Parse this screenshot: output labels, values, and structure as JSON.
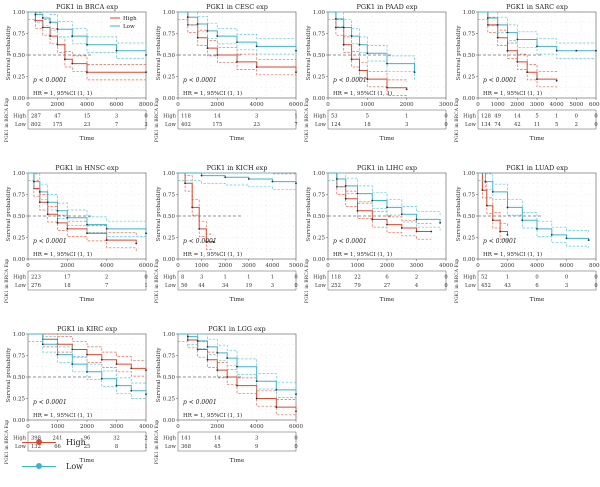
{
  "figure": {
    "colors": {
      "high": "#d9492e",
      "low": "#3fb4c8",
      "ci_high": "#e56b55",
      "ci_low": "#5fc8da",
      "km_dark": "#1e2f3c"
    },
    "legend": [
      {
        "label": "High",
        "series": "High"
      },
      {
        "label": "Low",
        "series": "Low"
      }
    ]
  },
  "chart_data": [
    {
      "type": "line",
      "title": "PGK1 in BRCA exp",
      "xlabel": "Time",
      "ylabel": "Survival probability",
      "xlim": [
        0,
        8000
      ],
      "ylim": [
        0,
        1
      ],
      "x_ticks": [
        "0",
        "2000",
        "4000",
        "6000",
        "8000"
      ],
      "y_ticks": [
        "0.00",
        "0.25",
        "0.50",
        "0.75",
        "1.00"
      ],
      "legend": [
        "High",
        "Low"
      ],
      "p_value": "p < 0.0001",
      "hr": "HR = 1, 95%CI (1, 1)",
      "risk_side_label": "PGK1 in BRCA Exp",
      "risk_rows": [
        {
          "name": "High",
          "counts": [
            "287",
            "47",
            "15",
            "3",
            "0"
          ]
        },
        {
          "name": "Low",
          "counts": [
            "802",
            "175",
            "23",
            "7",
            "3"
          ]
        }
      ],
      "series": [
        {
          "name": "High",
          "x": [
            0,
            500,
            1000,
            1500,
            2000,
            2500,
            3000,
            4000,
            8000
          ],
          "y": [
            1.0,
            0.9,
            0.82,
            0.72,
            0.62,
            0.45,
            0.4,
            0.3,
            0.3
          ]
        },
        {
          "name": "Low",
          "x": [
            0,
            500,
            1000,
            1500,
            2000,
            3000,
            4000,
            6000,
            8000
          ],
          "y": [
            1.0,
            0.97,
            0.93,
            0.88,
            0.8,
            0.72,
            0.62,
            0.55,
            0.5
          ]
        }
      ]
    },
    {
      "type": "line",
      "title": "PGK1 in CESC exp",
      "xlabel": "Time",
      "ylabel": "Survival probability",
      "xlim": [
        0,
        6000
      ],
      "ylim": [
        0,
        1
      ],
      "x_ticks": [
        "0",
        "2000",
        "4000",
        "6000"
      ],
      "y_ticks": [
        "0.00",
        "0.25",
        "0.50",
        "0.75",
        "1.00"
      ],
      "legend": [],
      "p_value": "p < 0.0001",
      "hr": "HR = 1, 95%CI (1, 1)",
      "risk_side_label": "PGK1 in BRCA Exp",
      "risk_rows": [
        {
          "name": "High",
          "counts": [
            "118",
            "14",
            "3",
            "1"
          ]
        },
        {
          "name": "Low",
          "counts": [
            "402",
            "175",
            "23",
            "7"
          ]
        }
      ],
      "series": [
        {
          "name": "High",
          "x": [
            0,
            500,
            1000,
            1500,
            2000,
            3000,
            4000,
            6000
          ],
          "y": [
            1.0,
            0.85,
            0.7,
            0.58,
            0.5,
            0.42,
            0.36,
            0.3
          ]
        },
        {
          "name": "Low",
          "x": [
            0,
            500,
            1000,
            1500,
            2000,
            3000,
            4000,
            6000
          ],
          "y": [
            1.0,
            0.94,
            0.86,
            0.78,
            0.72,
            0.65,
            0.6,
            0.55
          ]
        }
      ]
    },
    {
      "type": "line",
      "title": "PGK1 in PAAD exp",
      "xlabel": "Time",
      "ylabel": "Survival probability",
      "xlim": [
        0,
        3000
      ],
      "ylim": [
        0,
        1
      ],
      "x_ticks": [
        "0",
        "1000",
        "2000",
        "3000"
      ],
      "y_ticks": [
        "0.00",
        "0.25",
        "0.50",
        "0.75",
        "1.00"
      ],
      "legend": [],
      "p_value": "p < 0.0001",
      "hr": "HR = 1, 95%CI (1, 1)",
      "risk_side_label": "PGK1 in BRCA Exp",
      "risk_rows": [
        {
          "name": "High",
          "counts": [
            "53",
            "5",
            "1",
            "0"
          ]
        },
        {
          "name": "Low",
          "counts": [
            "124",
            "18",
            "3",
            "0"
          ]
        }
      ],
      "series": [
        {
          "name": "High",
          "x": [
            0,
            200,
            400,
            600,
            800,
            1000,
            1500,
            2000
          ],
          "y": [
            1.0,
            0.82,
            0.62,
            0.45,
            0.32,
            0.22,
            0.12,
            0.1
          ]
        },
        {
          "name": "Low",
          "x": [
            0,
            200,
            400,
            600,
            800,
            1000,
            1500,
            2200
          ],
          "y": [
            1.0,
            0.92,
            0.82,
            0.72,
            0.62,
            0.52,
            0.4,
            0.3
          ]
        }
      ]
    },
    {
      "type": "line",
      "title": "PGK1 in SARC exp",
      "xlabel": "Time",
      "ylabel": "Survival probability",
      "xlim": [
        0,
        6000
      ],
      "ylim": [
        0,
        1
      ],
      "x_ticks": [
        "0",
        "1000",
        "2000",
        "3000",
        "4000",
        "5000",
        "6000"
      ],
      "y_ticks": [
        "0.00",
        "0.25",
        "0.50",
        "0.75",
        "1.00"
      ],
      "legend": [],
      "p_value": "p < 0.0001",
      "hr": "HR = 1, 95%CI (1, 1)",
      "risk_side_label": "PGK1 in BRCA Exp",
      "risk_rows": [
        {
          "name": "High",
          "counts": [
            "128",
            "49",
            "14",
            "5",
            "1",
            "0",
            "0"
          ]
        },
        {
          "name": "Low",
          "counts": [
            "134",
            "74",
            "42",
            "11",
            "5",
            "2",
            "0"
          ]
        }
      ],
      "series": [
        {
          "name": "High",
          "x": [
            0,
            500,
            1000,
            1500,
            2000,
            2500,
            3000,
            4000
          ],
          "y": [
            1.0,
            0.85,
            0.7,
            0.55,
            0.42,
            0.3,
            0.22,
            0.2
          ]
        },
        {
          "name": "Low",
          "x": [
            0,
            500,
            1000,
            1500,
            2000,
            3000,
            4000,
            5000,
            6000
          ],
          "y": [
            1.0,
            0.93,
            0.85,
            0.76,
            0.68,
            0.6,
            0.55,
            0.55,
            0.55
          ]
        }
      ]
    },
    {
      "type": "line",
      "title": "PGK1 in HNSC exp",
      "xlabel": "Time",
      "ylabel": "Survival probability",
      "xlim": [
        0,
        6000
      ],
      "ylim": [
        0,
        1
      ],
      "x_ticks": [
        "0",
        "2000",
        "4000",
        "6000"
      ],
      "y_ticks": [
        "0.00",
        "0.25",
        "0.50",
        "0.75",
        "1.00"
      ],
      "legend": [],
      "p_value": "p < 0.0001",
      "hr": "HR = 1, 95%CI (1, 1)",
      "risk_side_label": "PGK1 in BRCA Exp",
      "risk_rows": [
        {
          "name": "High",
          "counts": [
            "223",
            "17",
            "2",
            "0"
          ]
        },
        {
          "name": "Low",
          "counts": [
            "276",
            "18",
            "7",
            "1"
          ]
        }
      ],
      "series": [
        {
          "name": "High",
          "x": [
            0,
            300,
            600,
            1000,
            1500,
            2000,
            3000,
            4000,
            5500
          ],
          "y": [
            1.0,
            0.82,
            0.66,
            0.52,
            0.42,
            0.35,
            0.3,
            0.22,
            0.18
          ]
        },
        {
          "name": "Low",
          "x": [
            0,
            300,
            600,
            1000,
            1500,
            2000,
            3000,
            4000,
            6000
          ],
          "y": [
            1.0,
            0.9,
            0.78,
            0.66,
            0.56,
            0.48,
            0.4,
            0.35,
            0.3
          ]
        }
      ]
    },
    {
      "type": "line",
      "title": "PGK1 in KICH exp",
      "xlabel": "Time",
      "ylabel": "Survival probability",
      "xlim": [
        0,
        5000
      ],
      "ylim": [
        0,
        1
      ],
      "x_ticks": [
        "0",
        "1000",
        "2000",
        "3000",
        "4000",
        "5000"
      ],
      "y_ticks": [
        "0.00",
        "0.25",
        "0.50",
        "0.75",
        "1.00"
      ],
      "legend": [],
      "p_value": "p < 0.0001",
      "hr": "HR = 1, 95%CI (1, 1)",
      "risk_side_label": "PGK1 in BRCA Exp",
      "risk_rows": [
        {
          "name": "High",
          "counts": [
            "8",
            "3",
            "1",
            "1",
            "1",
            "0"
          ]
        },
        {
          "name": "Low",
          "counts": [
            "56",
            "44",
            "34",
            "19",
            "3",
            "0"
          ]
        }
      ],
      "series": [
        {
          "name": "High",
          "x": [
            0,
            300,
            600,
            900,
            1200,
            1500
          ],
          "y": [
            1.0,
            0.88,
            0.6,
            0.35,
            0.2,
            0.2
          ]
        },
        {
          "name": "Low",
          "x": [
            0,
            1000,
            2000,
            3000,
            4000,
            5000
          ],
          "y": [
            1.0,
            0.97,
            0.95,
            0.93,
            0.9,
            0.88
          ]
        }
      ]
    },
    {
      "type": "line",
      "title": "PGK1 in LIHC exp",
      "xlabel": "Time",
      "ylabel": "Survival probability",
      "xlim": [
        0,
        4000
      ],
      "ylim": [
        0,
        1
      ],
      "x_ticks": [
        "0",
        "1000",
        "2000",
        "3000",
        "4000"
      ],
      "y_ticks": [
        "0.00",
        "0.25",
        "0.50",
        "0.75",
        "1.00"
      ],
      "legend": [],
      "p_value": "p < 0.0001",
      "hr": "HR = 1, 95%CI (1, 1)",
      "risk_side_label": "PGK1 in BRCA Exp",
      "risk_rows": [
        {
          "name": "High",
          "counts": [
            "118",
            "22",
            "6",
            "2",
            "0"
          ]
        },
        {
          "name": "Low",
          "counts": [
            "252",
            "79",
            "27",
            "4",
            "0"
          ]
        }
      ],
      "series": [
        {
          "name": "High",
          "x": [
            0,
            300,
            600,
            1000,
            1500,
            2000,
            2500,
            3000,
            3500
          ],
          "y": [
            1.0,
            0.84,
            0.7,
            0.56,
            0.46,
            0.4,
            0.36,
            0.32,
            0.32
          ]
        },
        {
          "name": "Low",
          "x": [
            0,
            300,
            600,
            1000,
            1500,
            2000,
            2500,
            3000,
            3800
          ],
          "y": [
            1.0,
            0.93,
            0.85,
            0.76,
            0.68,
            0.6,
            0.52,
            0.46,
            0.42
          ]
        }
      ]
    },
    {
      "type": "line",
      "title": "PGK1 in LUAD exp",
      "xlabel": "Time",
      "ylabel": "Survival probability",
      "xlim": [
        0,
        8000
      ],
      "ylim": [
        0,
        1
      ],
      "x_ticks": [
        "0",
        "2000",
        "4000",
        "6000",
        "8000"
      ],
      "y_ticks": [
        "0.00",
        "0.25",
        "0.50",
        "0.75",
        "1.00"
      ],
      "legend": [],
      "p_value": "p < 0.0001",
      "hr": "HR = 1, 95%CI (1, 1)",
      "risk_side_label": "PGK1 in BRCA Exp",
      "risk_rows": [
        {
          "name": "High",
          "counts": [
            "52",
            "1",
            "0",
            "0",
            "0"
          ]
        },
        {
          "name": "Low",
          "counts": [
            "452",
            "43",
            "6",
            "3",
            "0"
          ]
        }
      ],
      "series": [
        {
          "name": "High",
          "x": [
            0,
            300,
            600,
            1000,
            1500,
            2000
          ],
          "y": [
            1.0,
            0.8,
            0.62,
            0.45,
            0.32,
            0.28
          ]
        },
        {
          "name": "Low",
          "x": [
            0,
            500,
            1000,
            2000,
            3000,
            4000,
            5000,
            6000,
            7500
          ],
          "y": [
            1.0,
            0.9,
            0.78,
            0.6,
            0.45,
            0.35,
            0.28,
            0.24,
            0.22
          ]
        }
      ]
    },
    {
      "type": "line",
      "title": "PGK1 in KIRC exp",
      "xlabel": "Time",
      "ylabel": "Survival probability",
      "xlim": [
        0,
        4000
      ],
      "ylim": [
        0,
        1
      ],
      "x_ticks": [
        "0",
        "1000",
        "2000",
        "3000",
        "4000"
      ],
      "y_ticks": [
        "0.00",
        "0.25",
        "0.50",
        "0.75",
        "1.00"
      ],
      "legend": [],
      "p_value": "p < 0.0001",
      "hr": "HR = 1, 95%CI (1, 1)",
      "risk_side_label": "PGK1 in BRCA Exp",
      "risk_rows": [
        {
          "name": "High",
          "counts": [
            "398",
            "241",
            "96",
            "32",
            "2"
          ]
        },
        {
          "name": "Low",
          "counts": [
            "132",
            "66",
            "25",
            "8",
            "1"
          ]
        }
      ],
      "series": [
        {
          "name": "High",
          "x": [
            0,
            500,
            1000,
            1500,
            2000,
            2500,
            3000,
            3500,
            4000
          ],
          "y": [
            1.0,
            0.94,
            0.88,
            0.82,
            0.76,
            0.7,
            0.65,
            0.6,
            0.58
          ]
        },
        {
          "name": "Low",
          "x": [
            0,
            500,
            1000,
            1500,
            2000,
            2500,
            3000,
            3500,
            4000
          ],
          "y": [
            1.0,
            0.88,
            0.76,
            0.65,
            0.56,
            0.48,
            0.4,
            0.34,
            0.3
          ]
        }
      ]
    },
    {
      "type": "line",
      "title": "PGK1 in LGG exp",
      "xlabel": "Time",
      "ylabel": "Survival probability",
      "xlim": [
        0,
        6000
      ],
      "ylim": [
        0,
        1
      ],
      "x_ticks": [
        "0",
        "2000",
        "4000",
        "6000"
      ],
      "y_ticks": [
        "0.00",
        "0.25",
        "0.50",
        "0.75",
        "1.00"
      ],
      "legend": [],
      "p_value": "p < 0.0001",
      "hr": "HR = 1, 95%CI (1, 1)",
      "risk_side_label": "PGK1 in BRCA Exp",
      "risk_rows": [
        {
          "name": "High",
          "counts": [
            "141",
            "14",
            "3",
            "0"
          ]
        },
        {
          "name": "Low",
          "counts": [
            "368",
            "45",
            "9",
            "0"
          ]
        }
      ],
      "series": [
        {
          "name": "High",
          "x": [
            0,
            500,
            1000,
            1500,
            2000,
            2500,
            3000,
            4000,
            5000,
            6000
          ],
          "y": [
            1.0,
            0.93,
            0.82,
            0.7,
            0.58,
            0.5,
            0.4,
            0.25,
            0.15,
            0.1
          ]
        },
        {
          "name": "Low",
          "x": [
            0,
            500,
            1000,
            1500,
            2000,
            2500,
            3000,
            4000,
            5000,
            6000
          ],
          "y": [
            1.0,
            0.97,
            0.92,
            0.85,
            0.78,
            0.72,
            0.62,
            0.45,
            0.35,
            0.3
          ]
        }
      ]
    }
  ]
}
